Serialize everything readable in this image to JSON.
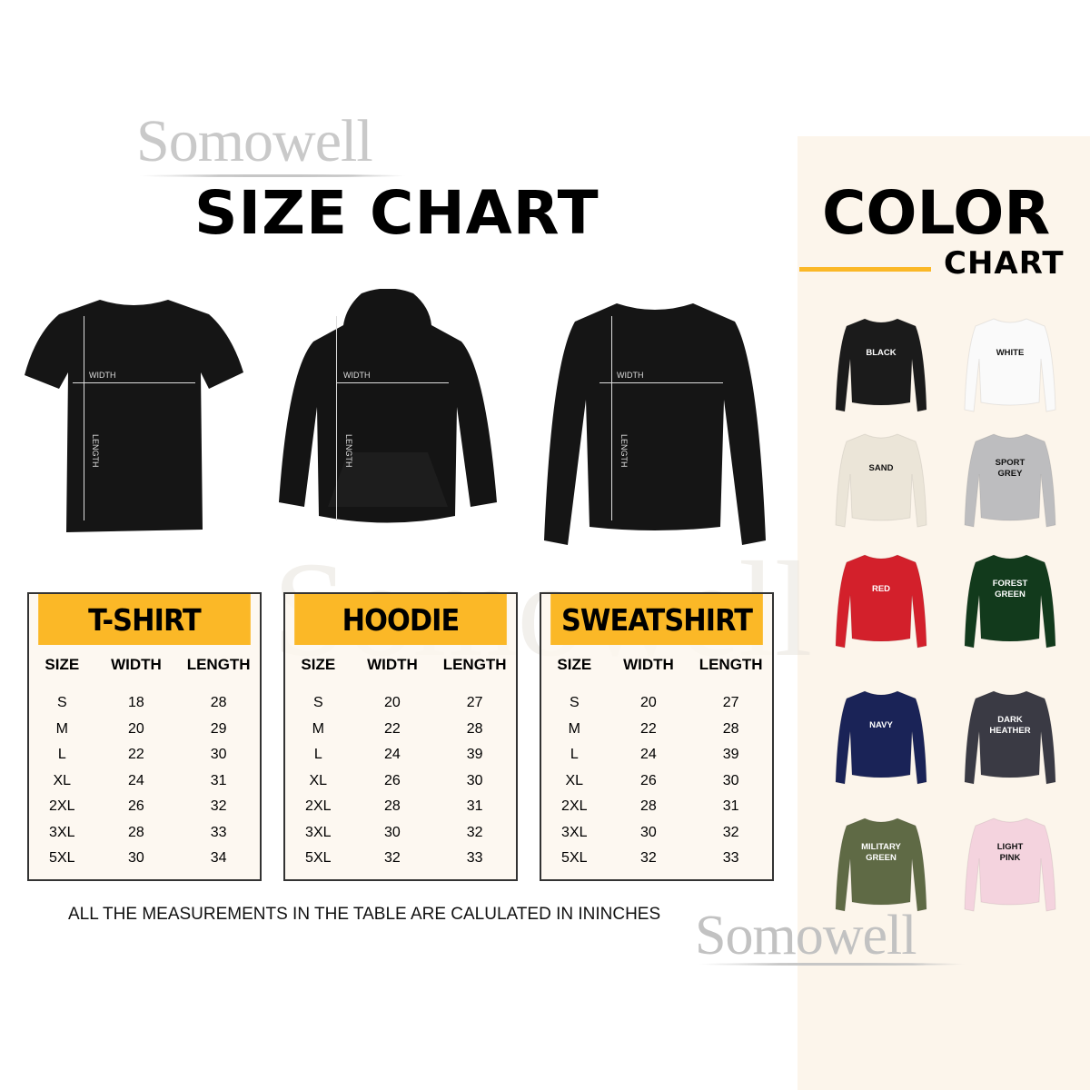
{
  "brand": "Somowell",
  "size_chart": {
    "title": "SIZE CHART"
  },
  "color_chart": {
    "title": "COLOR",
    "subtitle": "CHART",
    "accent": "#fbb827"
  },
  "measure_labels": {
    "width": "WIDTH",
    "length": "LENGTH"
  },
  "tables": [
    {
      "title": "T-SHIRT",
      "headers": [
        "SIZE",
        "WIDTH",
        "LENGTH"
      ],
      "rows": [
        [
          "S",
          "18",
          "28"
        ],
        [
          "M",
          "20",
          "29"
        ],
        [
          "L",
          "22",
          "30"
        ],
        [
          "XL",
          "24",
          "31"
        ],
        [
          "2XL",
          "26",
          "32"
        ],
        [
          "3XL",
          "28",
          "33"
        ],
        [
          "5XL",
          "30",
          "34"
        ]
      ]
    },
    {
      "title": "HOODIE",
      "headers": [
        "SIZE",
        "WIDTH",
        "LENGTH"
      ],
      "rows": [
        [
          "S",
          "20",
          "27"
        ],
        [
          "M",
          "22",
          "28"
        ],
        [
          "L",
          "24",
          "39"
        ],
        [
          "XL",
          "26",
          "30"
        ],
        [
          "2XL",
          "28",
          "31"
        ],
        [
          "3XL",
          "30",
          "32"
        ],
        [
          "5XL",
          "32",
          "33"
        ]
      ]
    },
    {
      "title": "SWEATSHIRT",
      "headers": [
        "SIZE",
        "WIDTH",
        "LENGTH"
      ],
      "rows": [
        [
          "S",
          "20",
          "27"
        ],
        [
          "M",
          "22",
          "28"
        ],
        [
          "L",
          "24",
          "39"
        ],
        [
          "XL",
          "26",
          "30"
        ],
        [
          "2XL",
          "28",
          "31"
        ],
        [
          "3XL",
          "30",
          "32"
        ],
        [
          "5XL",
          "32",
          "33"
        ]
      ]
    }
  ],
  "note": "ALL THE MEASUREMENTS IN THE TABLE ARE CALULATED IN ININCHES",
  "colors": [
    {
      "label": "BLACK",
      "hex": "#1b1b1b",
      "text": "#ffffff"
    },
    {
      "label": "WHITE",
      "hex": "#fafafa",
      "text": "#111111"
    },
    {
      "label": "SAND",
      "hex": "#ebe5d8",
      "text": "#111111"
    },
    {
      "label": "SPORT GREY",
      "hex": "#bdbdbf",
      "text": "#111111"
    },
    {
      "label": "RED",
      "hex": "#d3202b",
      "text": "#ffffff"
    },
    {
      "label": "FOREST GREEN",
      "hex": "#123a1c",
      "text": "#ffffff"
    },
    {
      "label": "NAVY",
      "hex": "#1a2357",
      "text": "#ffffff"
    },
    {
      "label": "DARK HEATHER",
      "hex": "#3a3a44",
      "text": "#ffffff"
    },
    {
      "label": "MILITARY GREEN",
      "hex": "#5f6a45",
      "text": "#ffffff"
    },
    {
      "label": "LIGHT PINK",
      "hex": "#f4d3de",
      "text": "#111111"
    }
  ]
}
